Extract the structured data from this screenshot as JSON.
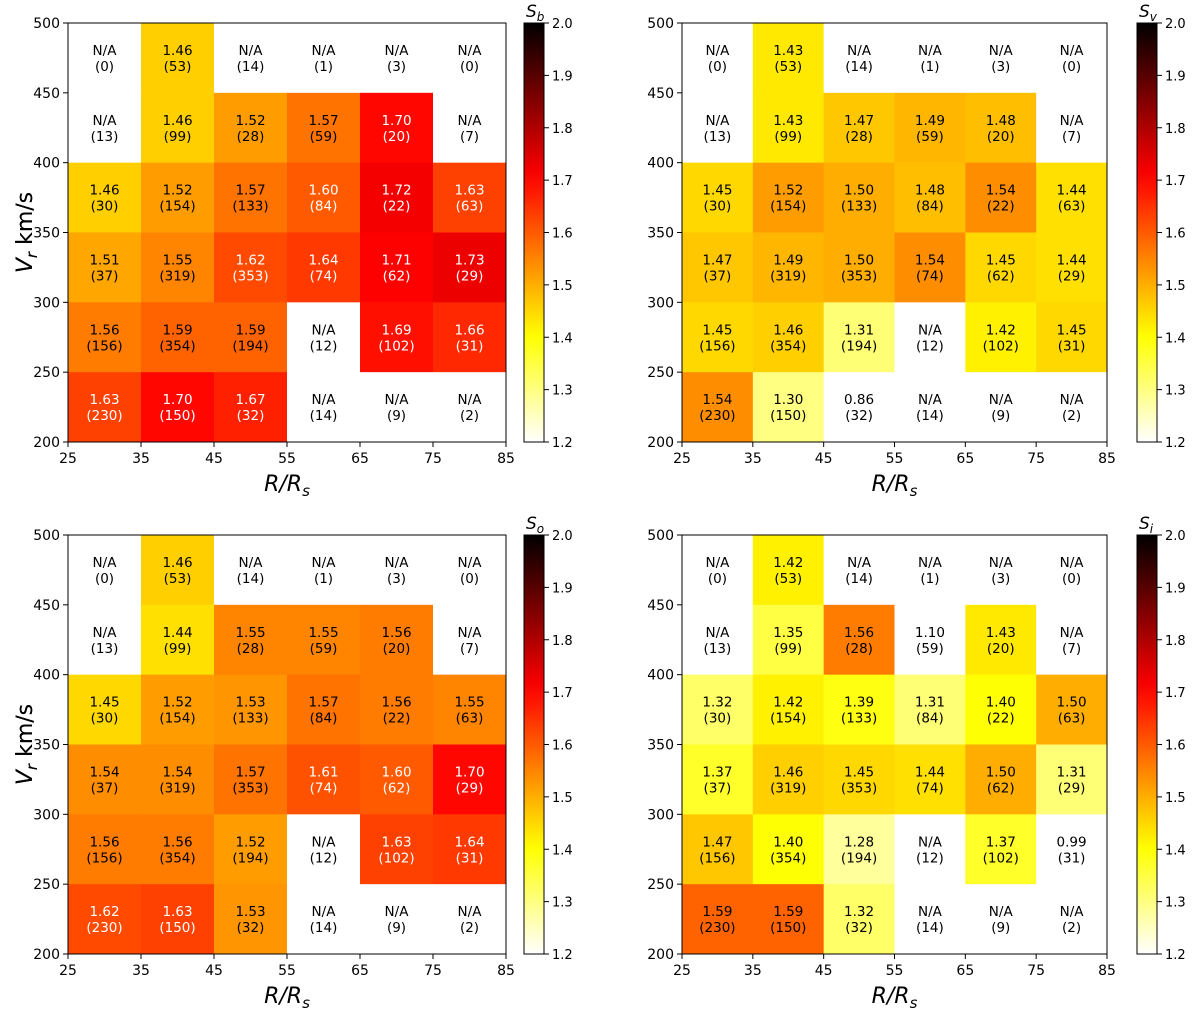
{
  "chart_data": [
    {
      "type": "heatmap",
      "name": "Sb",
      "colorbar": {
        "label_main": "S",
        "label_sub": "b",
        "range": [
          1.2,
          2.0
        ],
        "ticks": [
          "1.2",
          "1.3",
          "1.4",
          "1.5",
          "1.6",
          "1.7",
          "1.8",
          "1.9",
          "2.0"
        ]
      },
      "xlabel_main": "R/R",
      "xlabel_sub": "s",
      "ylabel_main": "V",
      "ylabel_sub": "r",
      "ylabel_rest": " km/s",
      "x_ticks": [
        "25",
        "35",
        "45",
        "55",
        "65",
        "75",
        "85"
      ],
      "y_ticks": [
        "200",
        "250",
        "300",
        "350",
        "400",
        "450",
        "500"
      ],
      "x_edges": [
        25,
        35,
        45,
        55,
        65,
        75,
        85
      ],
      "y_edges": [
        200,
        250,
        300,
        350,
        400,
        450,
        500
      ],
      "rows": [
        {
          "vr_range": "450-500",
          "cells": [
            {
              "value": "N/A",
              "count": "(0)"
            },
            {
              "value": "1.46",
              "count": "(53)"
            },
            {
              "value": "N/A",
              "count": "(14)"
            },
            {
              "value": "N/A",
              "count": "(1)"
            },
            {
              "value": "N/A",
              "count": "(3)"
            },
            {
              "value": "N/A",
              "count": "(0)"
            }
          ]
        },
        {
          "vr_range": "400-450",
          "cells": [
            {
              "value": "N/A",
              "count": "(13)"
            },
            {
              "value": "1.46",
              "count": "(99)"
            },
            {
              "value": "1.52",
              "count": "(28)"
            },
            {
              "value": "1.57",
              "count": "(59)"
            },
            {
              "value": "1.70",
              "count": "(20)"
            },
            {
              "value": "N/A",
              "count": "(7)"
            }
          ]
        },
        {
          "vr_range": "350-400",
          "cells": [
            {
              "value": "1.46",
              "count": "(30)"
            },
            {
              "value": "1.52",
              "count": "(154)"
            },
            {
              "value": "1.57",
              "count": "(133)"
            },
            {
              "value": "1.60",
              "count": "(84)"
            },
            {
              "value": "1.72",
              "count": "(22)"
            },
            {
              "value": "1.63",
              "count": "(63)"
            }
          ]
        },
        {
          "vr_range": "300-350",
          "cells": [
            {
              "value": "1.51",
              "count": "(37)"
            },
            {
              "value": "1.55",
              "count": "(319)"
            },
            {
              "value": "1.62",
              "count": "(353)"
            },
            {
              "value": "1.64",
              "count": "(74)"
            },
            {
              "value": "1.71",
              "count": "(62)"
            },
            {
              "value": "1.73",
              "count": "(29)"
            }
          ]
        },
        {
          "vr_range": "250-300",
          "cells": [
            {
              "value": "1.56",
              "count": "(156)"
            },
            {
              "value": "1.59",
              "count": "(354)"
            },
            {
              "value": "1.59",
              "count": "(194)"
            },
            {
              "value": "N/A",
              "count": "(12)"
            },
            {
              "value": "1.69",
              "count": "(102)"
            },
            {
              "value": "1.66",
              "count": "(31)"
            }
          ]
        },
        {
          "vr_range": "200-250",
          "cells": [
            {
              "value": "1.63",
              "count": "(230)"
            },
            {
              "value": "1.70",
              "count": "(150)"
            },
            {
              "value": "1.67",
              "count": "(32)"
            },
            {
              "value": "N/A",
              "count": "(14)"
            },
            {
              "value": "N/A",
              "count": "(9)"
            },
            {
              "value": "N/A",
              "count": "(2)"
            }
          ]
        }
      ]
    },
    {
      "type": "heatmap",
      "name": "Sv",
      "colorbar": {
        "label_main": "S",
        "label_sub": "v",
        "range": [
          1.2,
          2.0
        ],
        "ticks": [
          "1.2",
          "1.3",
          "1.4",
          "1.5",
          "1.6",
          "1.7",
          "1.8",
          "1.9",
          "2.0"
        ]
      },
      "xlabel_main": "R/R",
      "xlabel_sub": "s",
      "ylabel_main": "V",
      "ylabel_sub": "r",
      "ylabel_rest": " km/s",
      "x_ticks": [
        "25",
        "35",
        "45",
        "55",
        "65",
        "75",
        "85"
      ],
      "y_ticks": [
        "200",
        "250",
        "300",
        "350",
        "400",
        "450",
        "500"
      ],
      "x_edges": [
        25,
        35,
        45,
        55,
        65,
        75,
        85
      ],
      "y_edges": [
        200,
        250,
        300,
        350,
        400,
        450,
        500
      ],
      "rows": [
        {
          "vr_range": "450-500",
          "cells": [
            {
              "value": "N/A",
              "count": "(0)"
            },
            {
              "value": "1.43",
              "count": "(53)"
            },
            {
              "value": "N/A",
              "count": "(14)"
            },
            {
              "value": "N/A",
              "count": "(1)"
            },
            {
              "value": "N/A",
              "count": "(3)"
            },
            {
              "value": "N/A",
              "count": "(0)"
            }
          ]
        },
        {
          "vr_range": "400-450",
          "cells": [
            {
              "value": "N/A",
              "count": "(13)"
            },
            {
              "value": "1.43",
              "count": "(99)"
            },
            {
              "value": "1.47",
              "count": "(28)"
            },
            {
              "value": "1.49",
              "count": "(59)"
            },
            {
              "value": "1.48",
              "count": "(20)"
            },
            {
              "value": "N/A",
              "count": "(7)"
            }
          ]
        },
        {
          "vr_range": "350-400",
          "cells": [
            {
              "value": "1.45",
              "count": "(30)"
            },
            {
              "value": "1.52",
              "count": "(154)"
            },
            {
              "value": "1.50",
              "count": "(133)"
            },
            {
              "value": "1.48",
              "count": "(84)"
            },
            {
              "value": "1.54",
              "count": "(22)"
            },
            {
              "value": "1.44",
              "count": "(63)"
            }
          ]
        },
        {
          "vr_range": "300-350",
          "cells": [
            {
              "value": "1.47",
              "count": "(37)"
            },
            {
              "value": "1.49",
              "count": "(319)"
            },
            {
              "value": "1.50",
              "count": "(353)"
            },
            {
              "value": "1.54",
              "count": "(74)"
            },
            {
              "value": "1.45",
              "count": "(62)"
            },
            {
              "value": "1.44",
              "count": "(29)"
            }
          ]
        },
        {
          "vr_range": "250-300",
          "cells": [
            {
              "value": "1.45",
              "count": "(156)"
            },
            {
              "value": "1.46",
              "count": "(354)"
            },
            {
              "value": "1.31",
              "count": "(194)"
            },
            {
              "value": "N/A",
              "count": "(12)"
            },
            {
              "value": "1.42",
              "count": "(102)"
            },
            {
              "value": "1.45",
              "count": "(31)"
            }
          ]
        },
        {
          "vr_range": "200-250",
          "cells": [
            {
              "value": "1.54",
              "count": "(230)"
            },
            {
              "value": "1.30",
              "count": "(150)"
            },
            {
              "value": "0.86",
              "count": "(32)"
            },
            {
              "value": "N/A",
              "count": "(14)"
            },
            {
              "value": "N/A",
              "count": "(9)"
            },
            {
              "value": "N/A",
              "count": "(2)"
            }
          ]
        }
      ]
    },
    {
      "type": "heatmap",
      "name": "So",
      "colorbar": {
        "label_main": "S",
        "label_sub": "o",
        "range": [
          1.2,
          2.0
        ],
        "ticks": [
          "1.2",
          "1.3",
          "1.4",
          "1.5",
          "1.6",
          "1.7",
          "1.8",
          "1.9",
          "2.0"
        ]
      },
      "xlabel_main": "R/R",
      "xlabel_sub": "s",
      "ylabel_main": "V",
      "ylabel_sub": "r",
      "ylabel_rest": " km/s",
      "x_ticks": [
        "25",
        "35",
        "45",
        "55",
        "65",
        "75",
        "85"
      ],
      "y_ticks": [
        "200",
        "250",
        "300",
        "350",
        "400",
        "450",
        "500"
      ],
      "x_edges": [
        25,
        35,
        45,
        55,
        65,
        75,
        85
      ],
      "y_edges": [
        200,
        250,
        300,
        350,
        400,
        450,
        500
      ],
      "rows": [
        {
          "vr_range": "450-500",
          "cells": [
            {
              "value": "N/A",
              "count": "(0)"
            },
            {
              "value": "1.46",
              "count": "(53)"
            },
            {
              "value": "N/A",
              "count": "(14)"
            },
            {
              "value": "N/A",
              "count": "(1)"
            },
            {
              "value": "N/A",
              "count": "(3)"
            },
            {
              "value": "N/A",
              "count": "(0)"
            }
          ]
        },
        {
          "vr_range": "400-450",
          "cells": [
            {
              "value": "N/A",
              "count": "(13)"
            },
            {
              "value": "1.44",
              "count": "(99)"
            },
            {
              "value": "1.55",
              "count": "(28)"
            },
            {
              "value": "1.55",
              "count": "(59)"
            },
            {
              "value": "1.56",
              "count": "(20)"
            },
            {
              "value": "N/A",
              "count": "(7)"
            }
          ]
        },
        {
          "vr_range": "350-400",
          "cells": [
            {
              "value": "1.45",
              "count": "(30)"
            },
            {
              "value": "1.52",
              "count": "(154)"
            },
            {
              "value": "1.53",
              "count": "(133)"
            },
            {
              "value": "1.57",
              "count": "(84)"
            },
            {
              "value": "1.56",
              "count": "(22)"
            },
            {
              "value": "1.55",
              "count": "(63)"
            }
          ]
        },
        {
          "vr_range": "300-350",
          "cells": [
            {
              "value": "1.54",
              "count": "(37)"
            },
            {
              "value": "1.54",
              "count": "(319)"
            },
            {
              "value": "1.57",
              "count": "(353)"
            },
            {
              "value": "1.61",
              "count": "(74)"
            },
            {
              "value": "1.60",
              "count": "(62)"
            },
            {
              "value": "1.70",
              "count": "(29)"
            }
          ]
        },
        {
          "vr_range": "250-300",
          "cells": [
            {
              "value": "1.56",
              "count": "(156)"
            },
            {
              "value": "1.56",
              "count": "(354)"
            },
            {
              "value": "1.52",
              "count": "(194)"
            },
            {
              "value": "N/A",
              "count": "(12)"
            },
            {
              "value": "1.63",
              "count": "(102)"
            },
            {
              "value": "1.64",
              "count": "(31)"
            }
          ]
        },
        {
          "vr_range": "200-250",
          "cells": [
            {
              "value": "1.62",
              "count": "(230)"
            },
            {
              "value": "1.63",
              "count": "(150)"
            },
            {
              "value": "1.53",
              "count": "(32)"
            },
            {
              "value": "N/A",
              "count": "(14)"
            },
            {
              "value": "N/A",
              "count": "(9)"
            },
            {
              "value": "N/A",
              "count": "(2)"
            }
          ]
        }
      ]
    },
    {
      "type": "heatmap",
      "name": "Si",
      "colorbar": {
        "label_main": "S",
        "label_sub": "i",
        "range": [
          1.2,
          2.0
        ],
        "ticks": [
          "1.2",
          "1.3",
          "1.4",
          "1.5",
          "1.6",
          "1.7",
          "1.8",
          "1.9",
          "2.0"
        ]
      },
      "xlabel_main": "R/R",
      "xlabel_sub": "s",
      "ylabel_main": "V",
      "ylabel_sub": "r",
      "ylabel_rest": " km/s",
      "x_ticks": [
        "25",
        "35",
        "45",
        "55",
        "65",
        "75",
        "85"
      ],
      "y_ticks": [
        "200",
        "250",
        "300",
        "350",
        "400",
        "450",
        "500"
      ],
      "x_edges": [
        25,
        35,
        45,
        55,
        65,
        75,
        85
      ],
      "y_edges": [
        200,
        250,
        300,
        350,
        400,
        450,
        500
      ],
      "rows": [
        {
          "vr_range": "450-500",
          "cells": [
            {
              "value": "N/A",
              "count": "(0)"
            },
            {
              "value": "1.42",
              "count": "(53)"
            },
            {
              "value": "N/A",
              "count": "(14)"
            },
            {
              "value": "N/A",
              "count": "(1)"
            },
            {
              "value": "N/A",
              "count": "(3)"
            },
            {
              "value": "N/A",
              "count": "(0)"
            }
          ]
        },
        {
          "vr_range": "400-450",
          "cells": [
            {
              "value": "N/A",
              "count": "(13)"
            },
            {
              "value": "1.35",
              "count": "(99)"
            },
            {
              "value": "1.56",
              "count": "(28)"
            },
            {
              "value": "1.10",
              "count": "(59)"
            },
            {
              "value": "1.43",
              "count": "(20)"
            },
            {
              "value": "N/A",
              "count": "(7)"
            }
          ]
        },
        {
          "vr_range": "350-400",
          "cells": [
            {
              "value": "1.32",
              "count": "(30)"
            },
            {
              "value": "1.42",
              "count": "(154)"
            },
            {
              "value": "1.39",
              "count": "(133)"
            },
            {
              "value": "1.31",
              "count": "(84)"
            },
            {
              "value": "1.40",
              "count": "(22)"
            },
            {
              "value": "1.50",
              "count": "(63)"
            }
          ]
        },
        {
          "vr_range": "300-350",
          "cells": [
            {
              "value": "1.37",
              "count": "(37)"
            },
            {
              "value": "1.46",
              "count": "(319)"
            },
            {
              "value": "1.45",
              "count": "(353)"
            },
            {
              "value": "1.44",
              "count": "(74)"
            },
            {
              "value": "1.50",
              "count": "(62)"
            },
            {
              "value": "1.31",
              "count": "(29)"
            }
          ]
        },
        {
          "vr_range": "250-300",
          "cells": [
            {
              "value": "1.47",
              "count": "(156)"
            },
            {
              "value": "1.40",
              "count": "(354)"
            },
            {
              "value": "1.28",
              "count": "(194)"
            },
            {
              "value": "N/A",
              "count": "(12)"
            },
            {
              "value": "1.37",
              "count": "(102)"
            },
            {
              "value": "0.99",
              "count": "(31)"
            }
          ]
        },
        {
          "vr_range": "200-250",
          "cells": [
            {
              "value": "1.59",
              "count": "(230)"
            },
            {
              "value": "1.59",
              "count": "(150)"
            },
            {
              "value": "1.32",
              "count": "(32)"
            },
            {
              "value": "N/A",
              "count": "(14)"
            },
            {
              "value": "N/A",
              "count": "(9)"
            },
            {
              "value": "N/A",
              "count": "(2)"
            }
          ]
        }
      ]
    }
  ]
}
